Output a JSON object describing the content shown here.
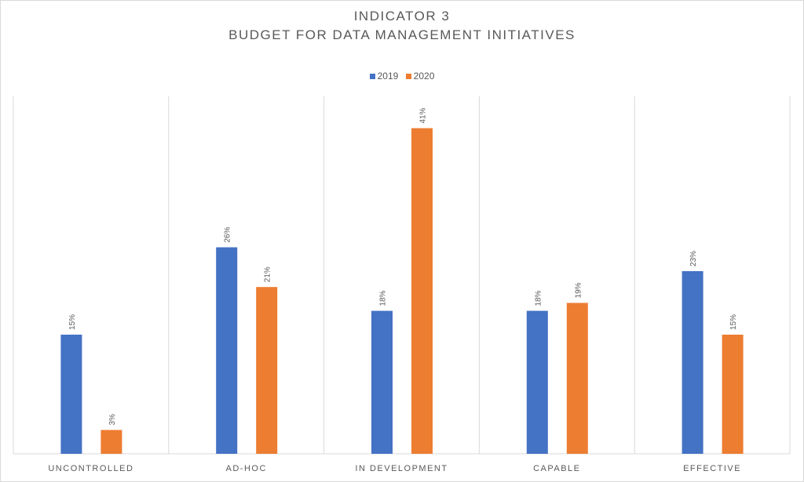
{
  "chart_data": {
    "type": "bar",
    "title": "INDICATOR 3",
    "subtitle": "BUDGET FOR DATA MANAGEMENT INITIATIVES",
    "categories": [
      "UNCONTROLLED",
      "AD-HOC",
      "IN DEVELOPMENT",
      "CAPABLE",
      "EFFECTIVE"
    ],
    "series": [
      {
        "name": "2019",
        "color": "#4472c4",
        "values": [
          15,
          26,
          18,
          18,
          23
        ],
        "labels": [
          "15%",
          "26%",
          "18%",
          "18%",
          "23%"
        ]
      },
      {
        "name": "2020",
        "color": "#ed7d31",
        "values": [
          3,
          21,
          41,
          19,
          15
        ],
        "labels": [
          "3%",
          "21%",
          "41%",
          "19%",
          "15%"
        ]
      }
    ],
    "ylim": [
      0,
      45
    ],
    "y_axis_visible": false,
    "category_separators": true,
    "legend_position": "top",
    "xlabel": "",
    "ylabel": ""
  }
}
